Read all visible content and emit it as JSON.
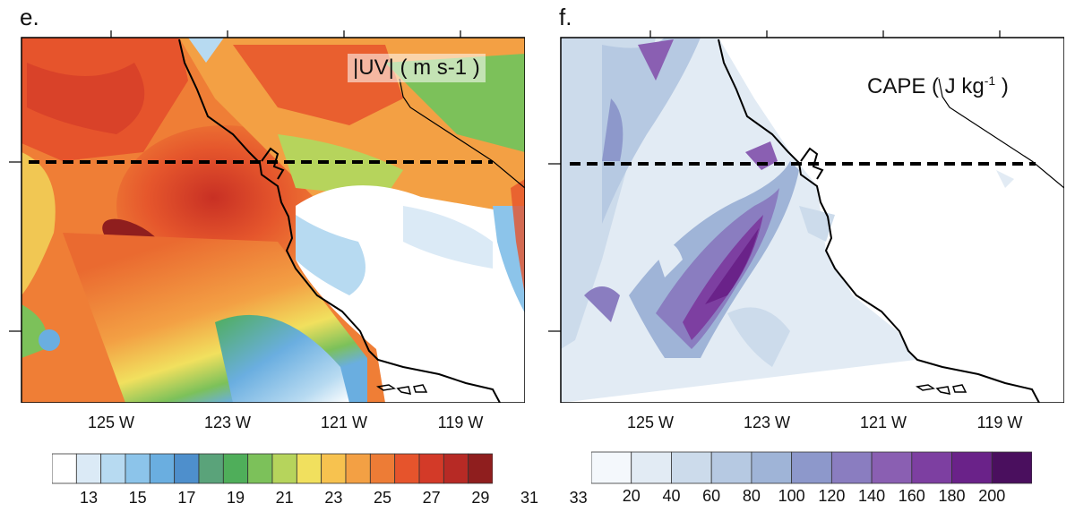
{
  "panels": [
    {
      "letter": "e.",
      "title": "|UV| ( m s-1 )",
      "variable": "wind speed",
      "transect": "dashed line across domain",
      "lon_ticks": [
        "125 W",
        "123 W",
        "121 W",
        "119 W"
      ],
      "colorbar": {
        "labels": [
          "13",
          "15",
          "17",
          "19",
          "21",
          "23",
          "25",
          "27",
          "29",
          "31",
          "33"
        ],
        "colors": [
          "#ffffff",
          "#dbeaf6",
          "#b7daf1",
          "#8cc4ea",
          "#6aaee0",
          "#4e8fcc",
          "#5aa37a",
          "#4fae5a",
          "#7cc15a",
          "#b6d45c",
          "#f1e05e",
          "#f7c24f",
          "#f3a044",
          "#ed7c36",
          "#e6542c",
          "#d33a28",
          "#b72a25",
          "#8f1e1e"
        ]
      }
    },
    {
      "letter": "f.",
      "title": "CAPE ( J kg",
      "title_sup": "-1",
      "title_end": " )",
      "variable": "CAPE",
      "lon_ticks": [
        "125 W",
        "123 W",
        "121 W",
        "119 W"
      ],
      "colorbar": {
        "labels": [
          "20",
          "40",
          "60",
          "80",
          "100",
          "120",
          "140",
          "160",
          "180",
          "200"
        ],
        "colors": [
          "#f4f8fc",
          "#e2ebf4",
          "#ccdbeb",
          "#b6c9e2",
          "#9fb4d7",
          "#8d98cb",
          "#8a7dc0",
          "#8a5fb2",
          "#7d3fa1",
          "#6a2289",
          "#4a0f5e"
        ]
      }
    }
  ]
}
